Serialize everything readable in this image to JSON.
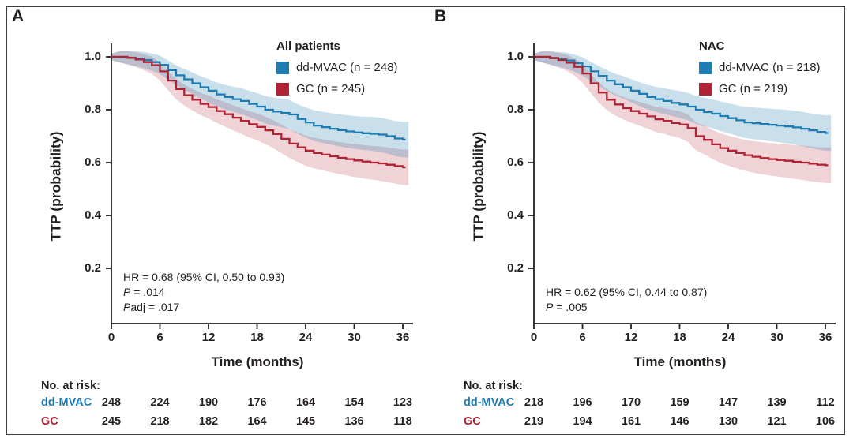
{
  "chart_data": [
    {
      "panel": "A",
      "type": "line",
      "subtype": "kaplan-meier-step-with-ci-band",
      "title": "All patients",
      "xlabel": "Time (months)",
      "ylabel": "TTP (probability)",
      "xlim": [
        0,
        36
      ],
      "ylim": [
        0,
        1.05
      ],
      "xticks": [
        0,
        6,
        12,
        18,
        24,
        30,
        36
      ],
      "xtick_labels": [
        "0",
        "6",
        "12",
        "18",
        "24",
        "30",
        "36"
      ],
      "yticks": [
        1.0,
        0.8,
        0.6,
        0.4,
        0.2
      ],
      "ytick_labels": [
        "1.0",
        "0.8",
        "0.6",
        "0.4",
        "0.2"
      ],
      "grid": false,
      "legend_position": "top-right-inside",
      "months": [
        0,
        1,
        2,
        3,
        4,
        5,
        6,
        7,
        8,
        9,
        10,
        11,
        12,
        13,
        14,
        15,
        16,
        17,
        18,
        19,
        20,
        21,
        22,
        23,
        24,
        25,
        26,
        27,
        28,
        29,
        30,
        31,
        32,
        33,
        34,
        35,
        36
      ],
      "series": [
        {
          "name": "dd-MVAC",
          "n": 248,
          "color": "#1e7cb1",
          "band_color": "rgba(30,124,177,0.24)",
          "values": [
            1.0,
            1.0,
            0.997,
            0.993,
            0.988,
            0.98,
            0.97,
            0.95,
            0.93,
            0.915,
            0.9,
            0.885,
            0.872,
            0.858,
            0.848,
            0.84,
            0.833,
            0.822,
            0.812,
            0.8,
            0.793,
            0.788,
            0.782,
            0.765,
            0.752,
            0.74,
            0.734,
            0.728,
            0.723,
            0.718,
            0.714,
            0.711,
            0.709,
            0.706,
            0.7,
            0.691,
            0.687
          ]
        },
        {
          "name": "GC",
          "n": 245,
          "color": "#b02335",
          "band_color": "rgba(176,35,53,0.20)",
          "values": [
            1.0,
            1.0,
            0.996,
            0.99,
            0.98,
            0.968,
            0.945,
            0.91,
            0.878,
            0.855,
            0.838,
            0.822,
            0.81,
            0.795,
            0.783,
            0.77,
            0.758,
            0.745,
            0.735,
            0.722,
            0.708,
            0.69,
            0.672,
            0.658,
            0.645,
            0.636,
            0.63,
            0.624,
            0.618,
            0.613,
            0.608,
            0.604,
            0.6,
            0.597,
            0.592,
            0.587,
            0.582
          ]
        }
      ],
      "legend": [
        {
          "label": "dd-MVAC (n = 248)",
          "color": "#1e7cb1"
        },
        {
          "label": "GC (n = 245)",
          "color": "#b02335"
        }
      ],
      "stats": [
        {
          "italic": "",
          "text": "HR = 0.68 (95% CI, 0.50 to 0.93)"
        },
        {
          "italic": "P",
          "text": " = .014"
        },
        {
          "italic": "P",
          "text": "adj = .017"
        }
      ],
      "risk_table": {
        "title": "No. at risk:",
        "rows": [
          {
            "label": "dd-MVAC",
            "color": "#1e7cb1",
            "values": [
              248,
              224,
              190,
              176,
              164,
              154,
              123
            ]
          },
          {
            "label": "GC",
            "color": "#b02335",
            "values": [
              245,
              218,
              182,
              164,
              145,
              136,
              118
            ]
          }
        ]
      }
    },
    {
      "panel": "B",
      "type": "line",
      "subtype": "kaplan-meier-step-with-ci-band",
      "title": "NAC",
      "xlabel": "Time (months)",
      "ylabel": "TTP (probability)",
      "xlim": [
        0,
        36
      ],
      "ylim": [
        0,
        1.05
      ],
      "xticks": [
        0,
        6,
        12,
        18,
        24,
        30,
        36
      ],
      "xtick_labels": [
        "0",
        "6",
        "12",
        "18",
        "24",
        "30",
        "36"
      ],
      "yticks": [
        1.0,
        0.8,
        0.6,
        0.4,
        0.2
      ],
      "ytick_labels": [
        "1.0",
        "0.8",
        "0.6",
        "0.4",
        "0.2"
      ],
      "grid": false,
      "legend_position": "top-right-inside",
      "months": [
        0,
        1,
        2,
        3,
        4,
        5,
        6,
        7,
        8,
        9,
        10,
        11,
        12,
        13,
        14,
        15,
        16,
        17,
        18,
        19,
        20,
        21,
        22,
        23,
        24,
        25,
        26,
        27,
        28,
        29,
        30,
        31,
        32,
        33,
        34,
        35,
        36
      ],
      "series": [
        {
          "name": "dd-MVAC",
          "n": 218,
          "color": "#1e7cb1",
          "band_color": "rgba(30,124,177,0.24)",
          "values": [
            1.0,
            1.0,
            0.996,
            0.991,
            0.986,
            0.976,
            0.964,
            0.945,
            0.928,
            0.91,
            0.896,
            0.885,
            0.872,
            0.86,
            0.848,
            0.84,
            0.833,
            0.826,
            0.82,
            0.812,
            0.8,
            0.791,
            0.785,
            0.776,
            0.768,
            0.76,
            0.752,
            0.749,
            0.746,
            0.743,
            0.74,
            0.737,
            0.733,
            0.728,
            0.722,
            0.716,
            0.712
          ]
        },
        {
          "name": "GC",
          "n": 219,
          "color": "#b02335",
          "band_color": "rgba(176,35,53,0.20)",
          "values": [
            1.0,
            1.0,
            0.995,
            0.988,
            0.978,
            0.962,
            0.937,
            0.9,
            0.865,
            0.838,
            0.82,
            0.806,
            0.795,
            0.785,
            0.775,
            0.764,
            0.758,
            0.75,
            0.744,
            0.73,
            0.7,
            0.686,
            0.669,
            0.655,
            0.645,
            0.636,
            0.628,
            0.622,
            0.617,
            0.613,
            0.61,
            0.607,
            0.603,
            0.6,
            0.596,
            0.592,
            0.59
          ]
        }
      ],
      "legend": [
        {
          "label": "dd-MVAC (n = 218)",
          "color": "#1e7cb1"
        },
        {
          "label": "GC (n = 219)",
          "color": "#b02335"
        }
      ],
      "stats": [
        {
          "italic": "",
          "text": "HR = 0.62 (95% CI, 0.44 to 0.87)"
        },
        {
          "italic": "P",
          "text": " = .005"
        }
      ],
      "risk_table": {
        "title": "No. at risk:",
        "rows": [
          {
            "label": "dd-MVAC",
            "color": "#1e7cb1",
            "values": [
              218,
              196,
              170,
              159,
              147,
              139,
              112
            ]
          },
          {
            "label": "GC",
            "color": "#b02335",
            "values": [
              219,
              194,
              161,
              146,
              130,
              121,
              106
            ]
          }
        ]
      }
    }
  ],
  "style": {
    "axis_color": "#231f20",
    "text_color": "#231f20",
    "background": "#ffffff"
  }
}
